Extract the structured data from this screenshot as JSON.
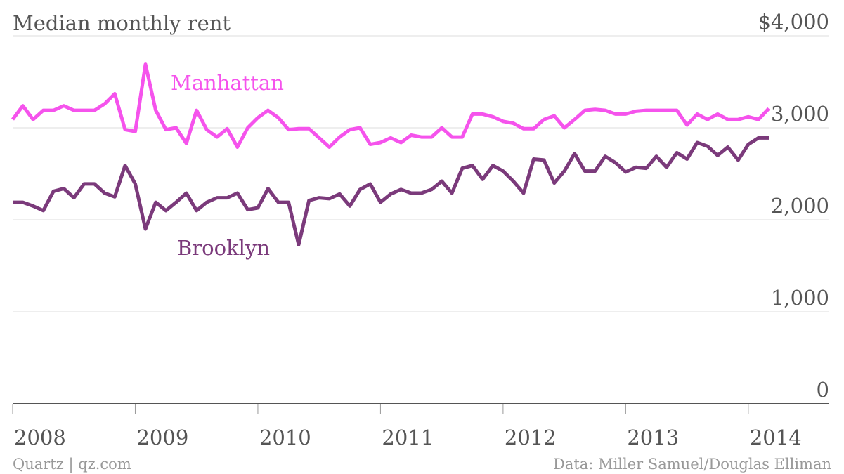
{
  "chart_data": {
    "type": "line",
    "title": "Median monthly rent",
    "source": "Data: Miller Samuel/Douglas Elliman",
    "credit": "Quartz | qz.com",
    "x": [
      2008,
      2008.083,
      2008.167,
      2008.25,
      2008.333,
      2008.417,
      2008.5,
      2008.583,
      2008.667,
      2008.75,
      2008.833,
      2008.917,
      2009,
      2009.083,
      2009.167,
      2009.25,
      2009.333,
      2009.417,
      2009.5,
      2009.583,
      2009.667,
      2009.75,
      2009.833,
      2009.917,
      2010,
      2010.083,
      2010.167,
      2010.25,
      2010.333,
      2010.417,
      2010.5,
      2010.583,
      2010.667,
      2010.75,
      2010.833,
      2010.917,
      2011,
      2011.083,
      2011.167,
      2011.25,
      2011.333,
      2011.417,
      2011.5,
      2011.583,
      2011.667,
      2011.75,
      2011.833,
      2011.917,
      2012,
      2012.083,
      2012.167,
      2012.25,
      2012.333,
      2012.417,
      2012.5,
      2012.583,
      2012.667,
      2012.75,
      2012.833,
      2012.917,
      2013,
      2013.083,
      2013.167,
      2013.25,
      2013.333,
      2013.417,
      2013.5,
      2013.583,
      2013.667,
      2013.75,
      2013.833,
      2013.917,
      2014,
      2014.083,
      2014.167
    ],
    "series": [
      {
        "name": "Manhattan",
        "color": "#f553ec",
        "values": [
          3090,
          3240,
          3090,
          3190,
          3190,
          3240,
          3190,
          3190,
          3190,
          3260,
          3370,
          2980,
          2960,
          3690,
          3190,
          2980,
          3000,
          2830,
          3190,
          2980,
          2900,
          2990,
          2790,
          3000,
          3110,
          3190,
          3110,
          2980,
          2990,
          2990,
          2890,
          2790,
          2900,
          2980,
          3000,
          2820,
          2840,
          2890,
          2840,
          2920,
          2900,
          2900,
          3000,
          2900,
          2900,
          3150,
          3150,
          3120,
          3070,
          3050,
          2990,
          2990,
          3090,
          3130,
          3000,
          3090,
          3190,
          3200,
          3190,
          3150,
          3150,
          3180,
          3190,
          3190,
          3190,
          3190,
          3030,
          3150,
          3090,
          3150,
          3090,
          3090,
          3120,
          3090,
          3210
        ]
      },
      {
        "name": "Brooklyn",
        "color": "#7b3a7b",
        "values": [
          2190,
          2190,
          2150,
          2100,
          2310,
          2340,
          2240,
          2390,
          2390,
          2290,
          2250,
          2590,
          2390,
          1900,
          2190,
          2100,
          2190,
          2290,
          2100,
          2190,
          2240,
          2240,
          2290,
          2110,
          2130,
          2340,
          2190,
          2190,
          1730,
          2210,
          2240,
          2230,
          2280,
          2150,
          2330,
          2390,
          2190,
          2280,
          2330,
          2290,
          2290,
          2330,
          2420,
          2290,
          2560,
          2590,
          2440,
          2590,
          2530,
          2420,
          2290,
          2660,
          2650,
          2400,
          2530,
          2720,
          2530,
          2530,
          2690,
          2620,
          2520,
          2570,
          2560,
          2690,
          2570,
          2730,
          2660,
          2840,
          2800,
          2700,
          2790,
          2650,
          2820,
          2890,
          2890
        ]
      }
    ],
    "xlim": [
      2008,
      2014.66
    ],
    "xticks": [
      2008,
      2009,
      2010,
      2011,
      2012,
      2013,
      2014
    ],
    "ylim": [
      0,
      4000
    ],
    "yticks": [
      0,
      {
        "value": 1000,
        "label": "1,000"
      },
      {
        "value": 2000,
        "label": "2,000"
      },
      {
        "value": 3000,
        "label": "3,000"
      },
      {
        "value": 4000,
        "label": "$4,000"
      }
    ],
    "grid": true
  }
}
